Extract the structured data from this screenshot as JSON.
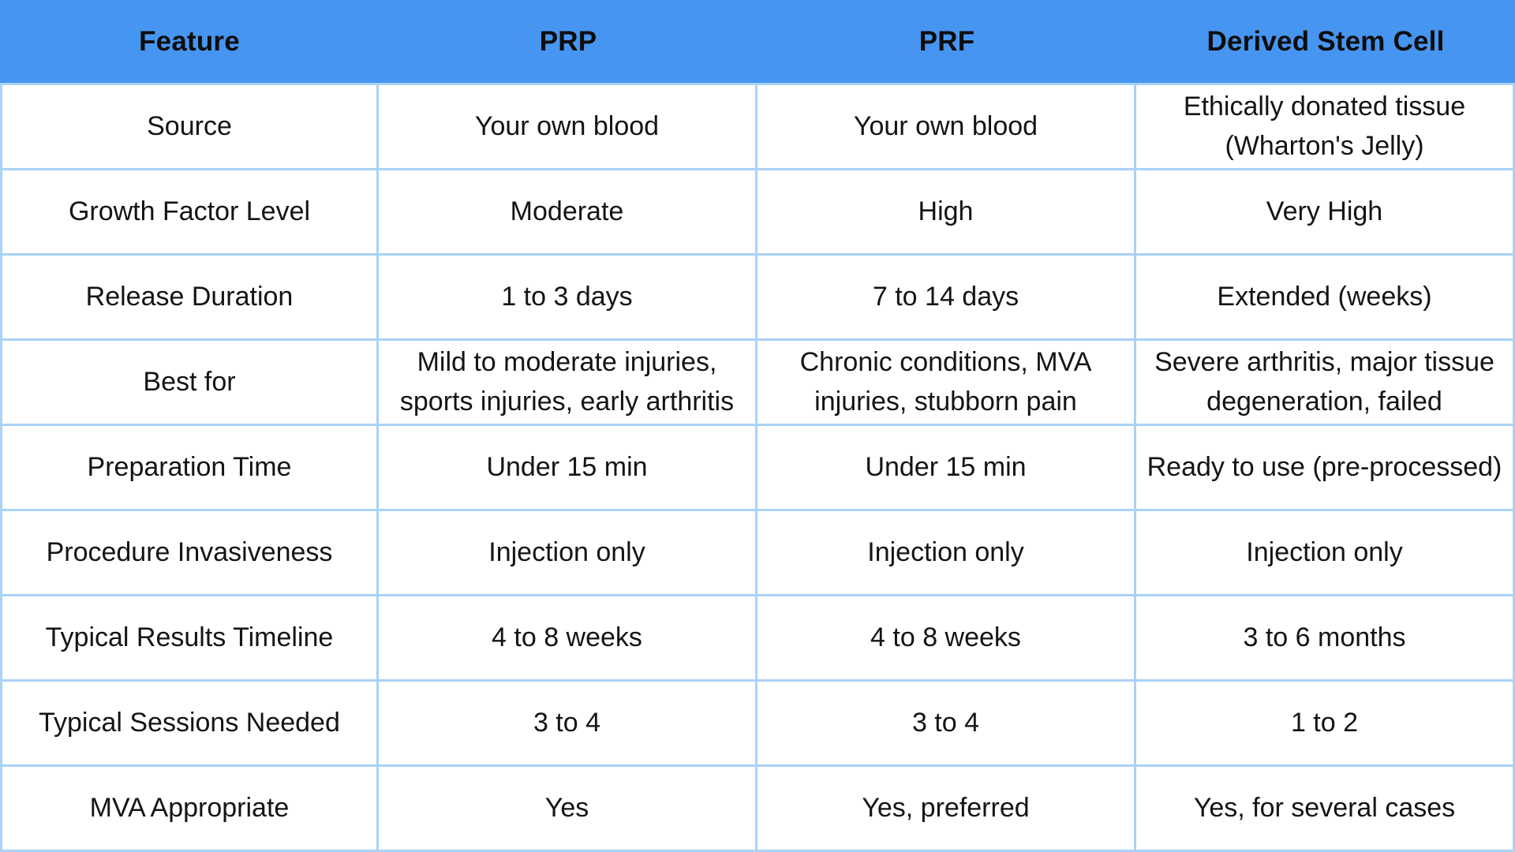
{
  "colors": {
    "header_bg": "#4695F0",
    "border": "#A9D2F7",
    "cell_bg": "#FFFFFF",
    "header_text": "#0D0D0D",
    "body_text": "#141414"
  },
  "table": {
    "headers": [
      "Feature",
      "PRP",
      "PRF",
      "Derived Stem Cell"
    ],
    "rows": [
      [
        "Source",
        "Your own blood",
        "Your own blood",
        "Ethically donated tissue\n(Wharton's Jelly)"
      ],
      [
        "Growth Factor Level",
        "Moderate",
        "High",
        "Very High"
      ],
      [
        "Release Duration",
        "1 to 3 days",
        "7 to 14 days",
        "Extended (weeks)"
      ],
      [
        "Best for",
        "Mild to moderate injuries,\nsports injuries, early arthritis",
        "Chronic conditions, MVA\ninjuries, stubborn pain",
        "Severe arthritis, major tissue\ndegeneration, failed"
      ],
      [
        "Preparation Time",
        "Under 15 min",
        "Under 15 min",
        "Ready to use (pre-processed)"
      ],
      [
        "Procedure Invasiveness",
        "Injection only",
        "Injection only",
        "Injection only"
      ],
      [
        "Typical Results Timeline",
        "4 to 8 weeks",
        "4 to 8 weeks",
        "3 to 6 months"
      ],
      [
        "Typical Sessions Needed",
        "3 to 4",
        "3 to 4",
        "1 to 2"
      ],
      [
        "MVA Appropriate",
        "Yes",
        "Yes, preferred",
        "Yes, for several cases"
      ]
    ]
  }
}
